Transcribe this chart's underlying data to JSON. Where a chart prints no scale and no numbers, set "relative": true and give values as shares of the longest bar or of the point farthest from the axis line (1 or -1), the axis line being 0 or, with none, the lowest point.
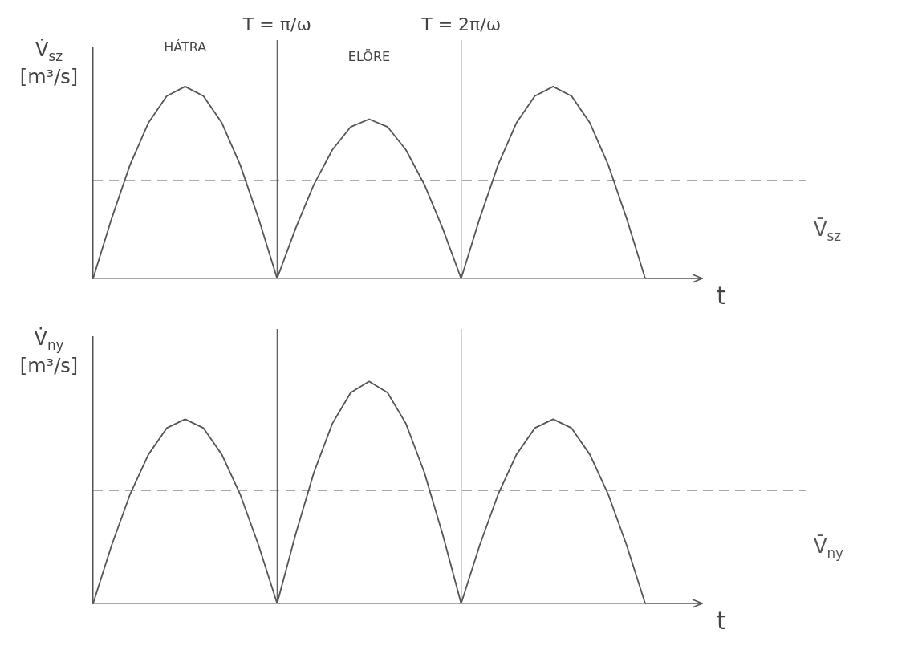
{
  "chart_data": [
    {
      "type": "line",
      "relative": true,
      "ylabel": "V̇$_{sz}$ [m³/s]",
      "xlabel": "t",
      "marker": "none",
      "line_style": "solid",
      "categories": [
        null,
        null,
        null,
        null,
        null,
        null,
        null,
        null,
        null,
        null,
        "T = π/ω",
        null,
        null,
        null,
        null,
        null,
        null,
        null,
        null,
        null,
        "T = 2π/ω",
        null,
        null,
        null,
        null,
        null,
        null,
        null,
        null,
        null,
        null
      ],
      "series": [
        {
          "color": "#555555",
          "values": [
            0,
            0.31,
            0.59,
            0.81,
            0.95,
            1,
            0.95,
            0.81,
            0.59,
            0.31,
            0,
            0.26,
            0.49,
            0.67,
            0.79,
            0.83,
            0.79,
            0.67,
            0.49,
            0.26,
            0,
            0.31,
            0.59,
            0.81,
            0.95,
            1,
            0.95,
            0.81,
            0.59,
            0.31,
            0
          ]
        }
      ],
      "ref_lines": [
        {
          "axis": "x",
          "value": "T = π/ω",
          "color": "#555555"
        },
        {
          "axis": "x",
          "value": "T = 2π/ω",
          "color": "#555555"
        },
        {
          "axis": "y",
          "value": 0.51,
          "label": "V̄$_{sz}$",
          "color": "#555555",
          "line_style": "dashed"
        }
      ],
      "annotations": [
        "HÁTRA",
        "ELÖRE"
      ]
    },
    {
      "type": "line",
      "relative": true,
      "ylabel": "V̇$_{ny}$ [m³/s]",
      "xlabel": "t",
      "tick_labels": false,
      "marker": "none",
      "line_style": "solid",
      "categories": [
        null,
        null,
        null,
        null,
        null,
        null,
        null,
        null,
        null,
        null,
        "T = π/ω",
        null,
        null,
        null,
        null,
        null,
        null,
        null,
        null,
        null,
        "T = 2π/ω",
        null,
        null,
        null,
        null,
        null,
        null,
        null,
        null,
        null,
        null
      ],
      "series": [
        {
          "color": "#555555",
          "values": [
            0,
            0.26,
            0.49,
            0.67,
            0.79,
            0.83,
            0.79,
            0.67,
            0.49,
            0.26,
            0,
            0.31,
            0.59,
            0.81,
            0.95,
            1,
            0.95,
            0.81,
            0.59,
            0.31,
            0,
            0.26,
            0.49,
            0.67,
            0.79,
            0.83,
            0.79,
            0.67,
            0.49,
            0.26,
            0
          ]
        }
      ],
      "ref_lines": [
        {
          "axis": "x",
          "value": "T = π/ω",
          "color": "#555555"
        },
        {
          "axis": "x",
          "value": "T = 2π/ω",
          "color": "#555555"
        },
        {
          "axis": "y",
          "value": 0.51,
          "label": "V̄$_{ny}$",
          "color": "#555555",
          "line_style": "dashed"
        }
      ]
    }
  ]
}
